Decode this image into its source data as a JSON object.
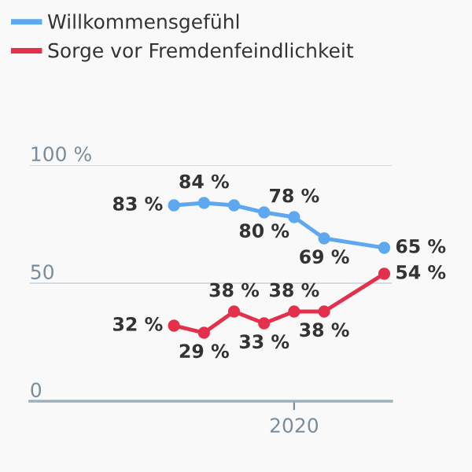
{
  "chart_data": {
    "type": "line",
    "categories": [
      null,
      null,
      null,
      null,
      "2020",
      null,
      null,
      null
    ],
    "series": [
      {
        "name": "Willkommensgefühl",
        "color": "#5ea8f0",
        "values": [
          83,
          84,
          83,
          80,
          78,
          69,
          null,
          65
        ],
        "value_labels": [
          "83 %",
          "84 %",
          null,
          "80 %",
          "78 %",
          "69 %",
          null,
          "65 %"
        ]
      },
      {
        "name": "Sorge vor Fremdenfeindlichkeit",
        "color": "#e3304b",
        "values": [
          32,
          29,
          38,
          33,
          38,
          38,
          null,
          54
        ],
        "value_labels": [
          "32 %",
          "29 %",
          "38 %",
          "33 %",
          "38 %",
          "38 %",
          null,
          "54 %"
        ]
      }
    ],
    "ylim": [
      0,
      100
    ],
    "yticks": [
      {
        "value": 0,
        "label": "0"
      },
      {
        "value": 50,
        "label": "50"
      },
      {
        "value": 100,
        "label": "100 %"
      }
    ],
    "grid": "y",
    "legend": "top left",
    "marker": "circle",
    "line_style": "solid"
  }
}
